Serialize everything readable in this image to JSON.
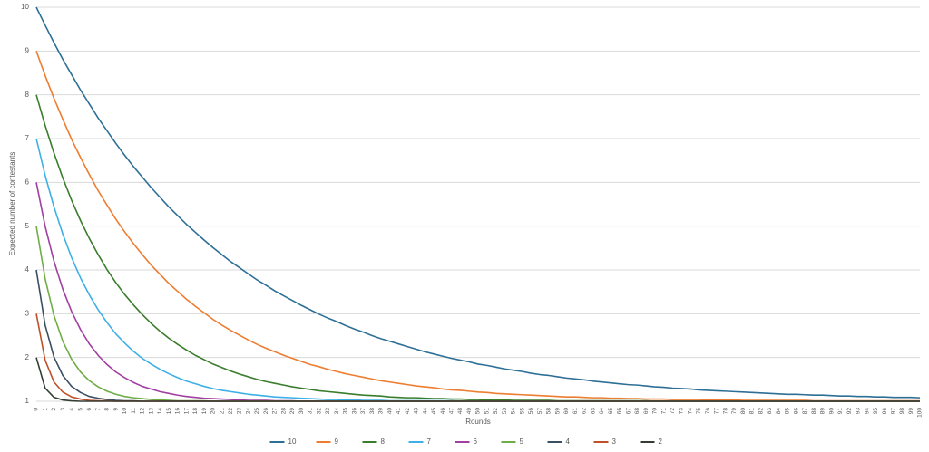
{
  "chart_data": {
    "type": "line",
    "y_label": "Expected number of contestants",
    "x_label": "Rounds",
    "x": [
      0,
      1,
      2,
      3,
      4,
      5,
      6,
      7,
      8,
      9,
      10,
      11,
      12,
      13,
      14,
      15,
      16,
      17,
      18,
      19,
      20,
      21,
      22,
      23,
      24,
      25,
      26,
      27,
      28,
      29,
      30,
      31,
      32,
      33,
      34,
      35,
      36,
      37,
      38,
      39,
      40,
      41,
      42,
      43,
      44,
      45,
      46,
      47,
      48,
      49,
      50,
      51,
      52,
      53,
      54,
      55,
      56,
      57,
      58,
      59,
      60,
      61,
      62,
      63,
      64,
      65,
      66,
      67,
      68,
      69,
      70,
      71,
      72,
      73,
      74,
      75,
      76,
      77,
      78,
      79,
      80,
      81,
      82,
      83,
      84,
      85,
      86,
      87,
      88,
      89,
      90,
      91,
      92,
      93,
      94,
      95,
      96,
      97,
      98,
      99,
      100
    ],
    "xlim": [
      0,
      100
    ],
    "ylim": [
      1,
      10
    ],
    "yticks": [
      1,
      2,
      3,
      4,
      5,
      6,
      7,
      8,
      9,
      10
    ],
    "grid": true,
    "legend": "bottom",
    "series": [
      {
        "name": "10",
        "color": "#2e6f96",
        "values": [
          10,
          9.59,
          9.19,
          8.81,
          8.46,
          8.11,
          7.79,
          7.47,
          7.18,
          6.89,
          6.62,
          6.36,
          6.12,
          5.88,
          5.66,
          5.44,
          5.24,
          5.04,
          4.86,
          4.68,
          4.51,
          4.35,
          4.19,
          4.05,
          3.91,
          3.77,
          3.65,
          3.52,
          3.41,
          3.3,
          3.19,
          3.09,
          2.99,
          2.9,
          2.82,
          2.73,
          2.65,
          2.58,
          2.5,
          2.43,
          2.37,
          2.31,
          2.25,
          2.19,
          2.13,
          2.08,
          2.03,
          1.98,
          1.94,
          1.9,
          1.85,
          1.82,
          1.78,
          1.74,
          1.71,
          1.68,
          1.64,
          1.61,
          1.59,
          1.56,
          1.53,
          1.51,
          1.49,
          1.46,
          1.44,
          1.42,
          1.4,
          1.38,
          1.37,
          1.35,
          1.33,
          1.32,
          1.3,
          1.29,
          1.28,
          1.26,
          1.25,
          1.24,
          1.23,
          1.22,
          1.21,
          1.2,
          1.19,
          1.18,
          1.17,
          1.16,
          1.16,
          1.15,
          1.14,
          1.14,
          1.13,
          1.12,
          1.12,
          1.11,
          1.11,
          1.1,
          1.1,
          1.09,
          1.09,
          1.09,
          1.08
        ]
      },
      {
        "name": "9",
        "color": "#ed7d31",
        "values": [
          9,
          8.44,
          7.92,
          7.44,
          6.98,
          6.57,
          6.18,
          5.81,
          5.48,
          5.16,
          4.87,
          4.6,
          4.35,
          4.11,
          3.9,
          3.69,
          3.51,
          3.33,
          3.17,
          3.02,
          2.87,
          2.74,
          2.62,
          2.51,
          2.4,
          2.3,
          2.21,
          2.13,
          2.05,
          1.98,
          1.91,
          1.84,
          1.79,
          1.73,
          1.68,
          1.63,
          1.59,
          1.55,
          1.51,
          1.47,
          1.44,
          1.41,
          1.38,
          1.35,
          1.33,
          1.31,
          1.28,
          1.26,
          1.25,
          1.23,
          1.21,
          1.2,
          1.18,
          1.17,
          1.16,
          1.15,
          1.14,
          1.13,
          1.12,
          1.11,
          1.1,
          1.1,
          1.09,
          1.08,
          1.08,
          1.07,
          1.07,
          1.06,
          1.06,
          1.05,
          1.05,
          1.05,
          1.04,
          1.04,
          1.04,
          1.04,
          1.03,
          1.03,
          1.03,
          1.03,
          1.02,
          1.02,
          1.02,
          1.02,
          1.02,
          1.02,
          1.02,
          1.02,
          1.01,
          1.01,
          1.01,
          1.01,
          1.01,
          1.01,
          1.01,
          1.01,
          1.01,
          1.01,
          1.01,
          1.01,
          1.01
        ]
      },
      {
        "name": "8",
        "color": "#3a7d2c",
        "values": [
          8,
          7.3,
          6.67,
          6.1,
          5.59,
          5.13,
          4.72,
          4.35,
          4.01,
          3.71,
          3.44,
          3.2,
          2.98,
          2.78,
          2.6,
          2.44,
          2.3,
          2.17,
          2.05,
          1.95,
          1.85,
          1.77,
          1.69,
          1.62,
          1.56,
          1.5,
          1.45,
          1.41,
          1.37,
          1.33,
          1.3,
          1.27,
          1.24,
          1.22,
          1.2,
          1.18,
          1.16,
          1.14,
          1.13,
          1.12,
          1.1,
          1.09,
          1.08,
          1.08,
          1.07,
          1.06,
          1.06,
          1.05,
          1.05,
          1.04,
          1.04,
          1.03,
          1.03,
          1.03,
          1.02,
          1.02,
          1.02,
          1.02,
          1.02,
          1.01,
          1.01,
          1.01,
          1.01,
          1.01,
          1.01,
          1.01,
          1.01,
          1.01,
          1.01,
          1.01,
          1,
          1,
          1,
          1,
          1,
          1,
          1,
          1,
          1,
          1,
          1,
          1,
          1,
          1,
          1,
          1,
          1,
          1,
          1,
          1,
          1,
          1,
          1,
          1,
          1,
          1,
          1,
          1,
          1,
          1,
          1
        ]
      },
      {
        "name": "7",
        "color": "#3eb0e6",
        "values": [
          7,
          6.16,
          5.44,
          4.82,
          4.28,
          3.82,
          3.43,
          3.09,
          2.8,
          2.54,
          2.33,
          2.14,
          1.98,
          1.85,
          1.73,
          1.63,
          1.54,
          1.46,
          1.4,
          1.34,
          1.29,
          1.25,
          1.22,
          1.19,
          1.16,
          1.14,
          1.12,
          1.1,
          1.09,
          1.08,
          1.07,
          1.06,
          1.05,
          1.04,
          1.04,
          1.03,
          1.03,
          1.02,
          1.02,
          1.02,
          1.01,
          1.01,
          1.01,
          1.01,
          1.01,
          1.01,
          1.01,
          1.01,
          1,
          1,
          1,
          1,
          1,
          1,
          1,
          1,
          1,
          1,
          1,
          1,
          1,
          1,
          1,
          1,
          1,
          1,
          1,
          1,
          1,
          1,
          1,
          1,
          1,
          1,
          1,
          1,
          1,
          1,
          1,
          1,
          1,
          1,
          1,
          1,
          1,
          1,
          1,
          1,
          1,
          1,
          1,
          1,
          1,
          1,
          1,
          1,
          1,
          1,
          1,
          1,
          1
        ]
      },
      {
        "name": "6",
        "color": "#a040a0",
        "values": [
          6,
          5,
          4.2,
          3.56,
          3.05,
          2.64,
          2.31,
          2.05,
          1.84,
          1.67,
          1.54,
          1.43,
          1.34,
          1.28,
          1.22,
          1.18,
          1.14,
          1.11,
          1.09,
          1.07,
          1.06,
          1.05,
          1.04,
          1.03,
          1.02,
          1.02,
          1.02,
          1.01,
          1.01,
          1.01,
          1,
          1,
          1,
          1,
          1,
          1,
          1,
          1,
          1,
          1,
          1,
          1,
          1,
          1,
          1,
          1,
          1,
          1,
          1,
          1,
          1,
          1,
          1,
          1,
          1,
          1,
          1,
          1,
          1,
          1,
          1,
          1,
          1,
          1,
          1,
          1,
          1,
          1,
          1,
          1,
          1,
          1,
          1,
          1,
          1,
          1,
          1,
          1,
          1,
          1,
          1,
          1,
          1,
          1,
          1,
          1,
          1,
          1,
          1,
          1,
          1,
          1,
          1,
          1,
          1,
          1,
          1,
          1,
          1,
          1,
          1
        ]
      },
      {
        "name": "5",
        "color": "#70ad47",
        "values": [
          5,
          3.8,
          2.96,
          2.37,
          1.96,
          1.67,
          1.47,
          1.33,
          1.23,
          1.16,
          1.11,
          1.08,
          1.06,
          1.04,
          1.03,
          1.02,
          1.01,
          1.01,
          1.01,
          1.01,
          1,
          1,
          1,
          1,
          1,
          1,
          1,
          1,
          1,
          1,
          1,
          1,
          1,
          1,
          1,
          1,
          1,
          1,
          1,
          1,
          1,
          1,
          1,
          1,
          1,
          1,
          1,
          1,
          1,
          1,
          1,
          1,
          1,
          1,
          1,
          1,
          1,
          1,
          1,
          1,
          1,
          1,
          1,
          1,
          1,
          1,
          1,
          1,
          1,
          1,
          1,
          1,
          1,
          1,
          1,
          1,
          1,
          1,
          1,
          1,
          1,
          1,
          1,
          1,
          1,
          1,
          1,
          1,
          1,
          1,
          1,
          1,
          1,
          1,
          1,
          1,
          1,
          1,
          1,
          1,
          1
        ]
      },
      {
        "name": "4",
        "color": "#3b4f63",
        "values": [
          4,
          2.74,
          2.01,
          1.59,
          1.34,
          1.2,
          1.11,
          1.07,
          1.04,
          1.02,
          1.01,
          1.01,
          1,
          1,
          1,
          1,
          1,
          1,
          1,
          1,
          1,
          1,
          1,
          1,
          1,
          1,
          1,
          1,
          1,
          1,
          1,
          1,
          1,
          1,
          1,
          1,
          1,
          1,
          1,
          1,
          1,
          1,
          1,
          1,
          1,
          1,
          1,
          1,
          1,
          1,
          1,
          1,
          1,
          1,
          1,
          1,
          1,
          1,
          1,
          1,
          1,
          1,
          1,
          1,
          1,
          1,
          1,
          1,
          1,
          1,
          1,
          1,
          1,
          1,
          1,
          1,
          1,
          1,
          1,
          1,
          1,
          1,
          1,
          1,
          1,
          1,
          1,
          1,
          1,
          1,
          1,
          1,
          1,
          1,
          1,
          1,
          1,
          1,
          1,
          1,
          1
        ]
      },
      {
        "name": "3",
        "color": "#c0502a",
        "values": [
          3,
          1.94,
          1.44,
          1.21,
          1.1,
          1.05,
          1.02,
          1.01,
          1.01,
          1,
          1,
          1,
          1,
          1,
          1,
          1,
          1,
          1,
          1,
          1,
          1,
          1,
          1,
          1,
          1,
          1,
          1,
          1,
          1,
          1,
          1,
          1,
          1,
          1,
          1,
          1,
          1,
          1,
          1,
          1,
          1,
          1,
          1,
          1,
          1,
          1,
          1,
          1,
          1,
          1,
          1,
          1,
          1,
          1,
          1,
          1,
          1,
          1,
          1,
          1,
          1,
          1,
          1,
          1,
          1,
          1,
          1,
          1,
          1,
          1,
          1,
          1,
          1,
          1,
          1,
          1,
          1,
          1,
          1,
          1,
          1,
          1,
          1,
          1,
          1,
          1,
          1,
          1,
          1,
          1,
          1,
          1,
          1,
          1,
          1,
          1,
          1,
          1,
          1,
          1,
          1
        ]
      },
      {
        "name": "2",
        "color": "#333d33",
        "values": [
          2,
          1.3,
          1.09,
          1.03,
          1.01,
          1,
          1,
          1,
          1,
          1,
          1,
          1,
          1,
          1,
          1,
          1,
          1,
          1,
          1,
          1,
          1,
          1,
          1,
          1,
          1,
          1,
          1,
          1,
          1,
          1,
          1,
          1,
          1,
          1,
          1,
          1,
          1,
          1,
          1,
          1,
          1,
          1,
          1,
          1,
          1,
          1,
          1,
          1,
          1,
          1,
          1,
          1,
          1,
          1,
          1,
          1,
          1,
          1,
          1,
          1,
          1,
          1,
          1,
          1,
          1,
          1,
          1,
          1,
          1,
          1,
          1,
          1,
          1,
          1,
          1,
          1,
          1,
          1,
          1,
          1,
          1,
          1,
          1,
          1,
          1,
          1,
          1,
          1,
          1,
          1,
          1,
          1,
          1,
          1,
          1,
          1,
          1,
          1,
          1,
          1,
          1
        ]
      }
    ]
  }
}
